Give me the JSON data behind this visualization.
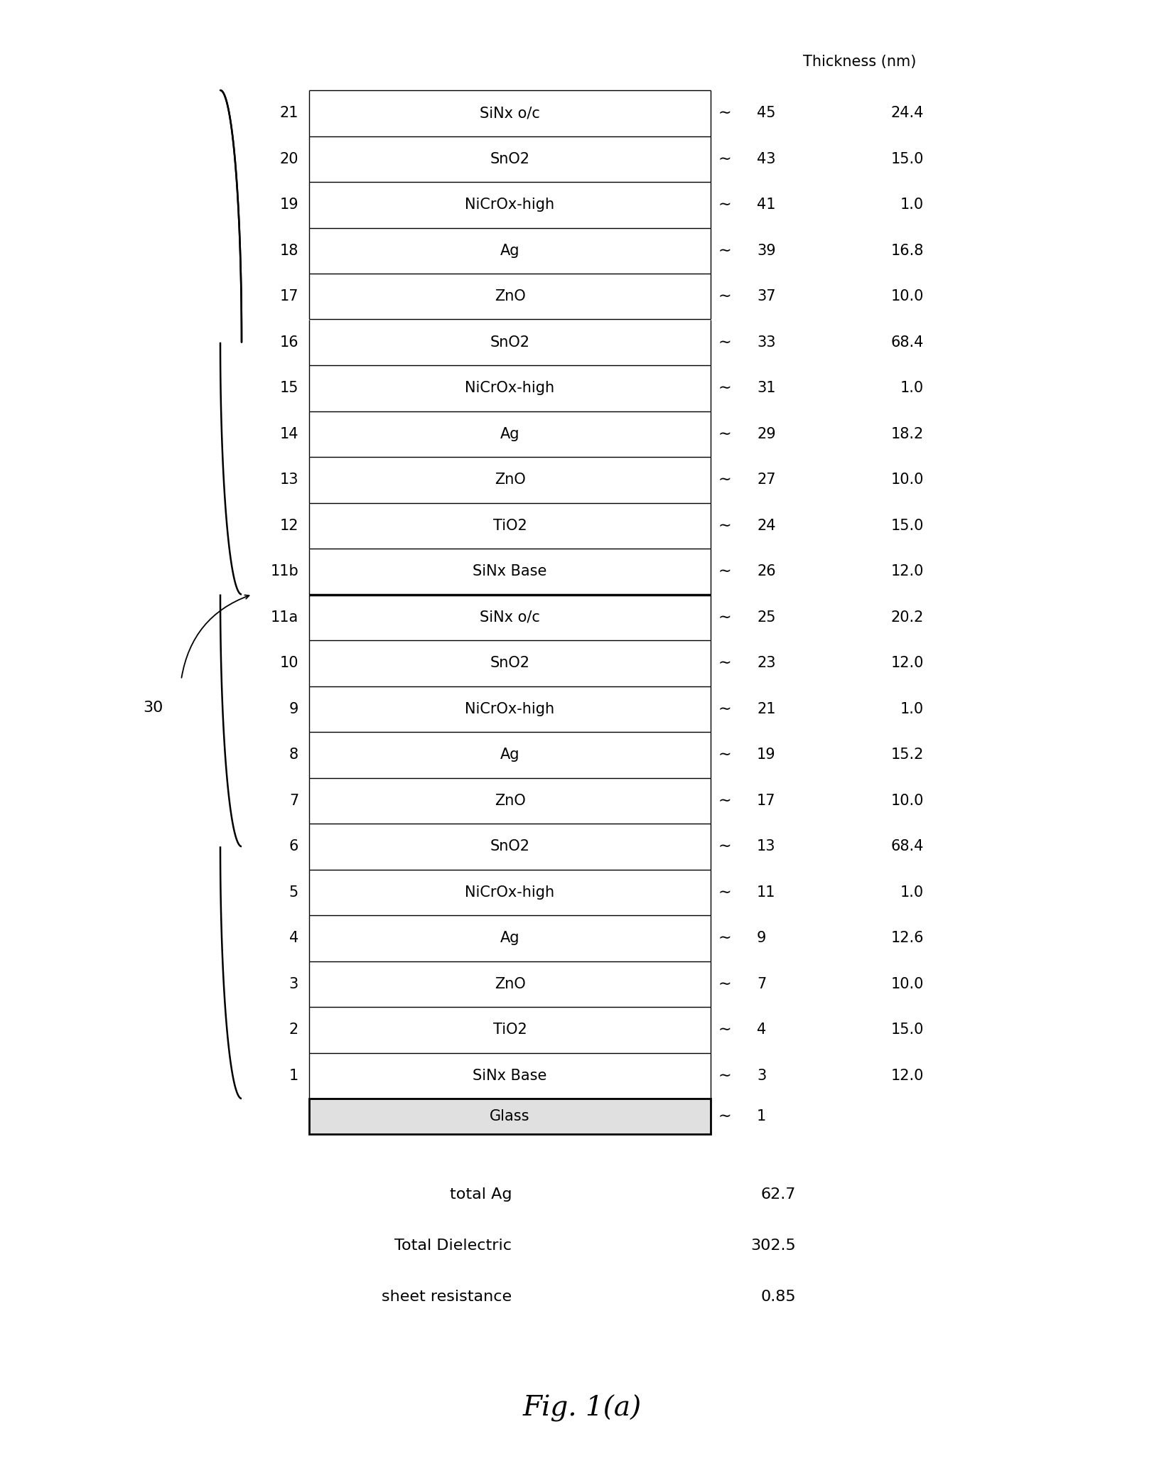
{
  "title": "Fig. 1(a)",
  "thickness_header": "Thickness (nm)",
  "layers": [
    {
      "row": 1,
      "label": "21",
      "name": "SiNx o/c",
      "ref": "45",
      "thickness": "24.4"
    },
    {
      "row": 2,
      "label": "20",
      "name": "SnO2",
      "ref": "43",
      "thickness": "15.0"
    },
    {
      "row": 3,
      "label": "19",
      "name": "NiCrOx-high",
      "ref": "41",
      "thickness": "1.0"
    },
    {
      "row": 4,
      "label": "18",
      "name": "Ag",
      "ref": "39",
      "thickness": "16.8"
    },
    {
      "row": 5,
      "label": "17",
      "name": "ZnO",
      "ref": "37",
      "thickness": "10.0"
    },
    {
      "row": 6,
      "label": "16",
      "name": "SnO2",
      "ref": "33",
      "thickness": "68.4"
    },
    {
      "row": 7,
      "label": "15",
      "name": "NiCrOx-high",
      "ref": "31",
      "thickness": "1.0"
    },
    {
      "row": 8,
      "label": "14",
      "name": "Ag",
      "ref": "29",
      "thickness": "18.2"
    },
    {
      "row": 9,
      "label": "13",
      "name": "ZnO",
      "ref": "27",
      "thickness": "10.0"
    },
    {
      "row": 10,
      "label": "12",
      "name": "TiO2",
      "ref": "24",
      "thickness": "15.0"
    },
    {
      "row": 11,
      "label": "11b",
      "name": "SiNx Base",
      "ref": "26",
      "thickness": "12.0"
    },
    {
      "row": 12,
      "label": "11a",
      "name": "SiNx o/c",
      "ref": "25",
      "thickness": "20.2"
    },
    {
      "row": 13,
      "label": "10",
      "name": "SnO2",
      "ref": "23",
      "thickness": "12.0"
    },
    {
      "row": 14,
      "label": "9",
      "name": "NiCrOx-high",
      "ref": "21",
      "thickness": "1.0"
    },
    {
      "row": 15,
      "label": "8",
      "name": "Ag",
      "ref": "19",
      "thickness": "15.2"
    },
    {
      "row": 16,
      "label": "7",
      "name": "ZnO",
      "ref": "17",
      "thickness": "10.0"
    },
    {
      "row": 17,
      "label": "6",
      "name": "SnO2",
      "ref": "13",
      "thickness": "68.4"
    },
    {
      "row": 18,
      "label": "5",
      "name": "NiCrOx-high",
      "ref": "11",
      "thickness": "1.0"
    },
    {
      "row": 19,
      "label": "4",
      "name": "Ag",
      "ref": "9",
      "thickness": "12.6"
    },
    {
      "row": 20,
      "label": "3",
      "name": "ZnO",
      "ref": "7",
      "thickness": "10.0"
    },
    {
      "row": 21,
      "label": "2",
      "name": "TiO2",
      "ref": "4",
      "thickness": "15.0"
    },
    {
      "row": 22,
      "label": "1",
      "name": "SiNx Base",
      "ref": "3",
      "thickness": "12.0"
    }
  ],
  "glass_label": "Glass",
  "glass_ref": "1",
  "bracket_label": "30",
  "summary": [
    {
      "label": "total Ag",
      "value": "62.7"
    },
    {
      "label": "Total Dielectric",
      "value": "302.5"
    },
    {
      "label": "sheet resistance",
      "value": "0.85"
    }
  ],
  "divider_after_row": 11,
  "bg_color": "#ffffff",
  "box_color": "#000000",
  "text_color": "#000000",
  "layer_font_size": 15,
  "header_font_size": 15,
  "summary_font_size": 16,
  "title_font_size": 28
}
